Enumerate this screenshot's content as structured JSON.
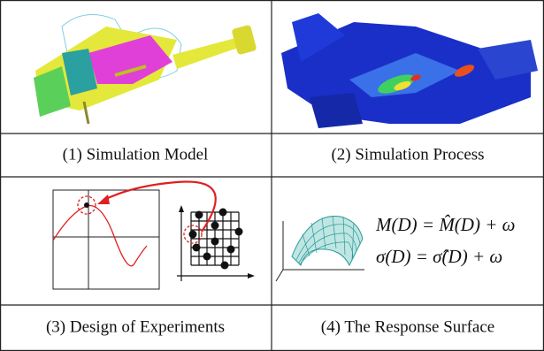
{
  "panels": [
    {
      "caption": "(1) Simulation Model"
    },
    {
      "caption": "(2) Simulation Process"
    },
    {
      "caption": "(3) Design of Experiments"
    },
    {
      "caption": "(4) The Response Surface"
    }
  ],
  "equations": [
    "M(D) = M̂(D) + ω",
    "σ(D) = σ̂(D) + ω"
  ]
}
